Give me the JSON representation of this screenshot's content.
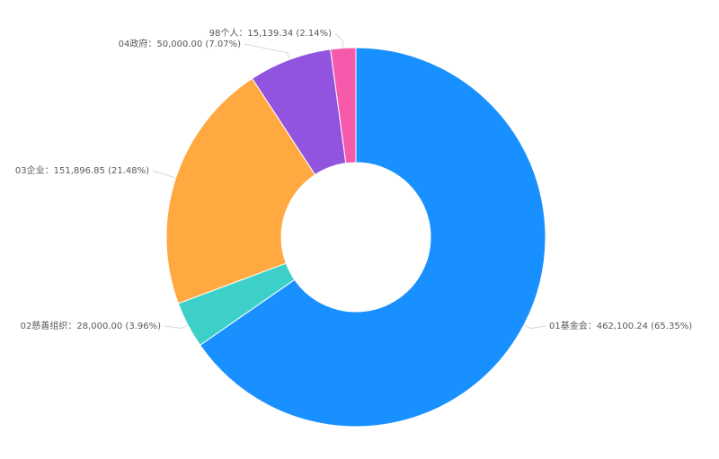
{
  "chart_data": {
    "type": "pie",
    "donut": true,
    "start_angle_deg": 0,
    "direction": "clockwise",
    "slices": [
      {
        "category": "01基金会",
        "value": 462100.24,
        "percent": "65.35%",
        "label": "01基金会：462,100.24 (65.35%)",
        "color": "#1890ff"
      },
      {
        "category": "02慈善组织",
        "value": 28000.0,
        "percent": "3.96%",
        "label": "02慈善组织：28,000.00 (3.96%)",
        "color": "#3dd0c8"
      },
      {
        "category": "03企业",
        "value": 151896.85,
        "percent": "21.48%",
        "label": "03企业：151,896.85 (21.48%)",
        "color": "#ffa940"
      },
      {
        "category": "04政府",
        "value": 50000.0,
        "percent": "7.07%",
        "label": "04政府：50,000.00 (7.07%)",
        "color": "#9254de"
      },
      {
        "category": "98个人",
        "value": 15139.34,
        "percent": "2.14%",
        "label": "98个人：15,139.34 (2.14%)",
        "color": "#f759ab"
      }
    ]
  }
}
